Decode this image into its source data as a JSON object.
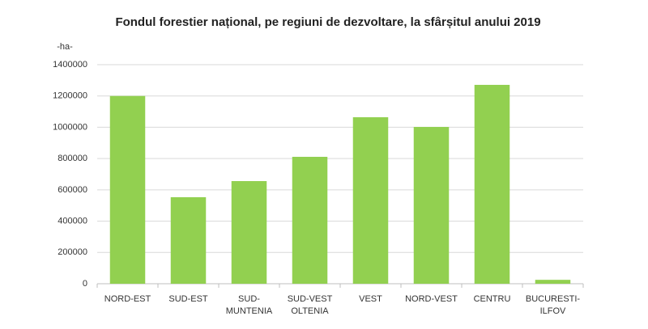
{
  "chart_data": {
    "type": "bar",
    "title": "Fondul forestier național, pe regiuni de dezvoltare, la sfârșitul anului 2019",
    "y_label": "-ha-",
    "categories": [
      "NORD-EST",
      "SUD-EST",
      "SUD-MUNTENIA",
      "SUD-VEST OLTENIA",
      "VEST",
      "NORD-VEST",
      "CENTRU",
      "BUCURESTI-ILFOV"
    ],
    "values": [
      1200000,
      553000,
      656000,
      811000,
      1064000,
      1002000,
      1271000,
      25000
    ],
    "color": "#92d050",
    "ylim": [
      0,
      1400000
    ],
    "yticks": [
      0,
      200000,
      400000,
      600000,
      800000,
      1000000,
      1200000,
      1400000
    ],
    "grid": true
  }
}
